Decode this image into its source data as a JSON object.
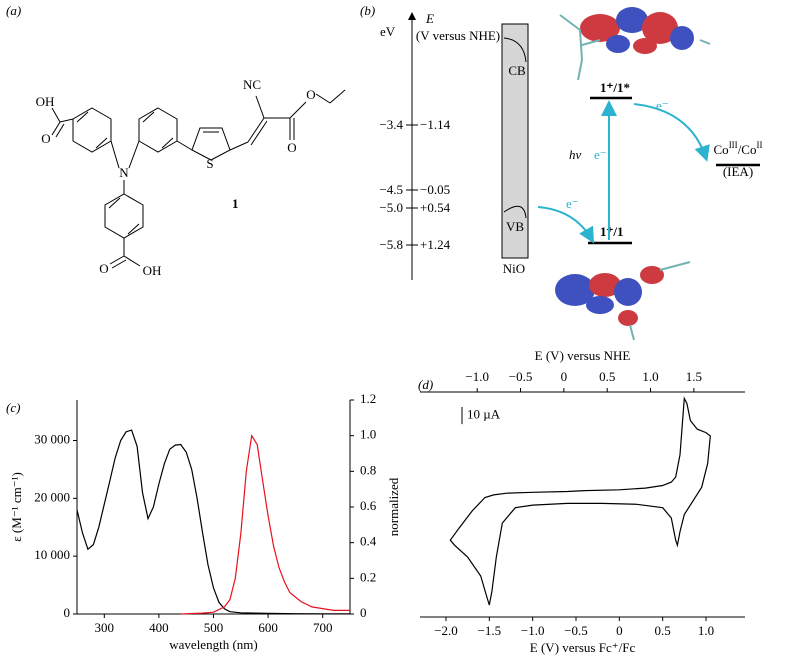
{
  "panel_a": {
    "label": "(a)",
    "atoms": [
      "OH",
      "O",
      "N",
      "S",
      "NC",
      "O",
      "O",
      "O",
      "OH"
    ],
    "compound": "1"
  },
  "panel_b": {
    "label": "(b)",
    "axis_symbol": "E",
    "axis_unit": "(V versus NHE)",
    "axis_ev": "eV",
    "levels": [
      {
        "ev": "−3.4",
        "nhe": "−1.14"
      },
      {
        "ev": "−4.5",
        "nhe": "−0.05"
      },
      {
        "ev": "−5.0",
        "nhe": "+0.54"
      },
      {
        "ev": "−5.8",
        "nhe": "+1.24"
      }
    ],
    "cb": "CB",
    "vb": "VB",
    "nio": "NiO",
    "excited": "1⁺/1*",
    "ground": "1⁺/1",
    "hv": "hν",
    "electron": [
      "e⁻",
      "e⁻",
      "e⁻"
    ],
    "acceptor": [
      "Co",
      "III",
      "/Co",
      "II"
    ],
    "acceptor_name": "(IEA)"
  },
  "chart_data": [
    {
      "type": "line",
      "label": "(c)",
      "xlabel": "wavelength (nm)",
      "ylabel": "ε (M⁻¹ cm⁻¹)",
      "y2label": "normalized",
      "xlim": [
        250,
        750
      ],
      "xticks": [
        300,
        400,
        500,
        600,
        700
      ],
      "ylim": [
        0,
        37000
      ],
      "yticks": [
        0,
        {
          "value": 10000,
          "label": "10 000"
        },
        {
          "value": 20000,
          "label": "20 000"
        },
        {
          "value": 30000,
          "label": "30 000"
        }
      ],
      "y2lim": [
        0,
        1.2
      ],
      "y2ticks": [
        0,
        0.2,
        0.4,
        0.6,
        0.8,
        {
          "value": 1,
          "label": "1.0"
        },
        1.2
      ],
      "series": [
        {
          "color": "#000000",
          "x": [
            250,
            260,
            270,
            280,
            290,
            300,
            310,
            320,
            330,
            340,
            350,
            360,
            370,
            380,
            390,
            400,
            410,
            420,
            430,
            440,
            450,
            460,
            470,
            480,
            490,
            500,
            510,
            520,
            530,
            550,
            600,
            650,
            700,
            750
          ],
          "values": [
            18000,
            14000,
            11200,
            12000,
            15000,
            19000,
            23000,
            27000,
            30000,
            31500,
            31800,
            29000,
            21000,
            16500,
            18500,
            22500,
            26000,
            28500,
            29200,
            29300,
            28000,
            25000,
            20000,
            14000,
            8500,
            4500,
            2000,
            900,
            400,
            200,
            100,
            50,
            30,
            20
          ]
        },
        {
          "color": "#e8101c",
          "axis": "y2",
          "x": [
            440,
            480,
            500,
            520,
            530,
            540,
            550,
            560,
            570,
            580,
            590,
            600,
            610,
            620,
            630,
            640,
            660,
            680,
            700,
            720,
            750
          ],
          "values": [
            0,
            0.005,
            0.01,
            0.04,
            0.08,
            0.2,
            0.45,
            0.8,
            1.0,
            0.95,
            0.75,
            0.55,
            0.38,
            0.26,
            0.18,
            0.12,
            0.07,
            0.04,
            0.03,
            0.02,
            0.02
          ]
        }
      ]
    },
    {
      "type": "line",
      "label": "(d)",
      "xlabel": "E (V) versus Fc⁺/Fc",
      "x2label": "E (V) versus NHE",
      "xlim": [
        -2.3,
        1.45
      ],
      "xticks": [
        {
          "value": -2,
          "label": "−2.0"
        },
        {
          "value": -1.5,
          "label": "−1.5"
        },
        {
          "value": -1,
          "label": "−1.0"
        },
        {
          "value": -0.5,
          "label": "−0.5"
        },
        0,
        0.5,
        {
          "value": 1,
          "label": "1.0"
        }
      ],
      "x2lim": [
        -1.66,
        2.09
      ],
      "x2ticks": [
        {
          "value": -1,
          "label": "−1.0"
        },
        {
          "value": -0.5,
          "label": "−0.5"
        },
        0,
        0.5,
        {
          "value": 1,
          "label": "1.0"
        },
        1.5
      ],
      "ylim": [
        -80,
        50
      ],
      "scale_bar": {
        "value": 10,
        "label": "10 µA"
      },
      "series": [
        {
          "color": "#000000",
          "x": [
            -0.4,
            0,
            0.3,
            0.5,
            0.6,
            0.65,
            0.7,
            0.73,
            0.75,
            0.78,
            0.82,
            0.9,
            1.0,
            1.05,
            1.02,
            0.95,
            0.85,
            0.75,
            0.7,
            0.67,
            0.65,
            0.6,
            0.5,
            0.2,
            -0.2,
            -0.6,
            -1.0,
            -1.2,
            -1.35,
            -1.42,
            -1.47,
            -1.5,
            -1.53,
            -1.6,
            -1.75,
            -1.9,
            -1.95,
            -1.85,
            -1.7,
            -1.55,
            -1.45,
            -1.3,
            -1.0,
            -0.6,
            -0.4
          ],
          "values": [
            -6,
            -5.5,
            -4.5,
            -3,
            -1,
            2,
            15,
            35,
            48,
            45,
            35,
            30,
            28,
            26,
            10,
            -4,
            -12,
            -20,
            -30,
            -38,
            -35,
            -22,
            -16,
            -14,
            -13.5,
            -13.5,
            -14.5,
            -16,
            -25,
            -45,
            -65,
            -73,
            -68,
            -56,
            -45,
            -38,
            -35,
            -28,
            -18,
            -10,
            -8.5,
            -7.5,
            -7,
            -6.5,
            -6
          ]
        }
      ]
    }
  ]
}
